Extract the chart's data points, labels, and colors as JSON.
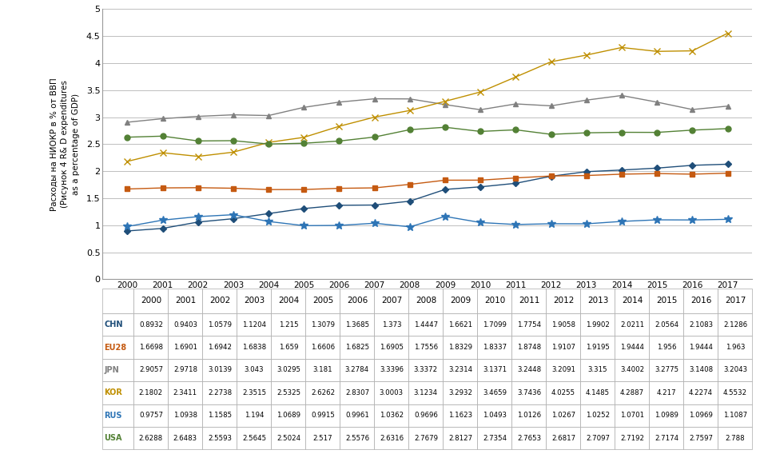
{
  "years": [
    2000,
    2001,
    2002,
    2003,
    2004,
    2005,
    2006,
    2007,
    2008,
    2009,
    2010,
    2011,
    2012,
    2013,
    2014,
    2015,
    2016,
    2017
  ],
  "series": {
    "CHN": [
      0.8932,
      0.9403,
      1.0579,
      1.1204,
      1.215,
      1.3079,
      1.3685,
      1.373,
      1.4447,
      1.6621,
      1.7099,
      1.7754,
      1.9058,
      1.9902,
      2.0211,
      2.0564,
      2.1083,
      2.1286
    ],
    "EU28": [
      1.6698,
      1.6901,
      1.6942,
      1.6838,
      1.659,
      1.6606,
      1.6825,
      1.6905,
      1.7556,
      1.8329,
      1.8337,
      1.8748,
      1.9107,
      1.9195,
      1.9444,
      1.956,
      1.9444,
      1.963
    ],
    "JPN": [
      2.9057,
      2.9718,
      3.0139,
      3.043,
      3.0295,
      3.181,
      3.2784,
      3.3396,
      3.3372,
      3.2314,
      3.1371,
      3.2448,
      3.2091,
      3.315,
      3.4002,
      3.2775,
      3.1408,
      3.2043
    ],
    "KOR": [
      2.1802,
      2.3411,
      2.2738,
      2.3515,
      2.5325,
      2.6262,
      2.8307,
      3.0003,
      3.1234,
      3.2932,
      3.4659,
      3.7436,
      4.0255,
      4.1485,
      4.2887,
      4.217,
      4.2274,
      4.5532
    ],
    "RUS": [
      0.9757,
      1.0938,
      1.1585,
      1.194,
      1.0689,
      0.9915,
      0.9961,
      1.0362,
      0.9696,
      1.1623,
      1.0493,
      1.0126,
      1.0267,
      1.0252,
      1.0701,
      1.0989,
      1.0969,
      1.1087
    ],
    "USA": [
      2.6288,
      2.6483,
      2.5593,
      2.5645,
      2.5024,
      2.517,
      2.5576,
      2.6316,
      2.7679,
      2.8127,
      2.7354,
      2.7653,
      2.6817,
      2.7097,
      2.7192,
      2.7174,
      2.7597,
      2.788
    ]
  },
  "colors": {
    "CHN": "#1f4e79",
    "EU28": "#c55a11",
    "JPN": "#808080",
    "KOR": "#bf8f00",
    "RUS": "#2e75b6",
    "USA": "#538135"
  },
  "line_colors": {
    "CHN": "#1f4e79",
    "EU28": "#c55a11",
    "JPN": "#808080",
    "KOR": "#bf8f00",
    "RUS": "#2e75b6",
    "USA": "#538135"
  },
  "markers": {
    "CHN": "D",
    "EU28": "s",
    "JPN": "^",
    "KOR": "x",
    "RUS": "*",
    "USA": "o"
  },
  "marker_sizes": {
    "CHN": 4,
    "EU28": 4,
    "JPN": 5,
    "KOR": 6,
    "RUS": 7,
    "USA": 5
  },
  "ylabel_line1": "Расходы на НИОКР в % от ВВП",
  "ylabel_line2": "(Рисунок 4 R& D expenditures",
  "ylabel_line3": "as a percentage of GDP)",
  "ylim": [
    0,
    5
  ],
  "yticks": [
    0,
    0.5,
    1.0,
    1.5,
    2.0,
    2.5,
    3.0,
    3.5,
    4.0,
    4.5,
    5.0
  ],
  "ytick_labels": [
    "0",
    "0.5",
    "1",
    "1.5",
    "2",
    "2.5",
    "3",
    "3.5",
    "4",
    "4.5",
    "5"
  ],
  "bg_color": "#ffffff",
  "grid_color": "#bfbfbf"
}
